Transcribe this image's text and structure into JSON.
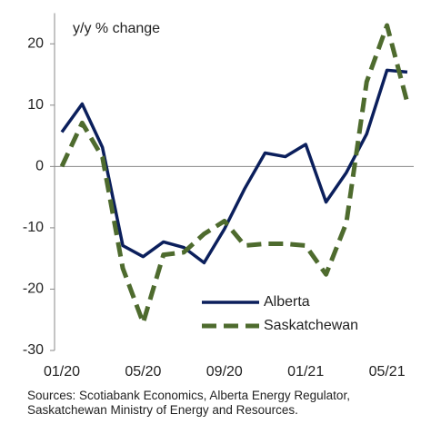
{
  "chart_data": {
    "type": "line",
    "title": "y/y % change",
    "categories": [
      "01/20",
      null,
      null,
      null,
      "05/20",
      null,
      null,
      null,
      "09/20",
      null,
      null,
      null,
      "01/21",
      null,
      null,
      null,
      "05/21",
      null
    ],
    "series": [
      {
        "name": "Alberta",
        "color": "#0b1f5c",
        "dash": false,
        "values": [
          5.6,
          10.2,
          3.1,
          -12.9,
          -14.7,
          -12.3,
          -13.2,
          -15.7,
          -10.2,
          -3.6,
          2.2,
          1.6,
          3.6,
          -5.8,
          -1,
          5.3,
          15.7,
          15.4
        ]
      },
      {
        "name": "Saskatchewan",
        "color": "#4e6b2e",
        "dash": true,
        "values": [
          0,
          7.1,
          1.5,
          -16.6,
          -25.5,
          -14.4,
          -14,
          -11,
          -8.9,
          -12.9,
          -12.6,
          -12.6,
          -12.9,
          -17.6,
          -9.2,
          13.8,
          23,
          10.4
        ]
      }
    ],
    "ylim": [
      -30,
      25
    ],
    "yticks": [
      -30,
      -20,
      -10,
      0,
      10,
      20
    ],
    "grid": false,
    "legend": "lower right",
    "source": [
      "Sources: Scotiabank Economics, Alberta Energy Regulator,",
      "Saskatchewan Ministry of Energy and Resources."
    ]
  }
}
